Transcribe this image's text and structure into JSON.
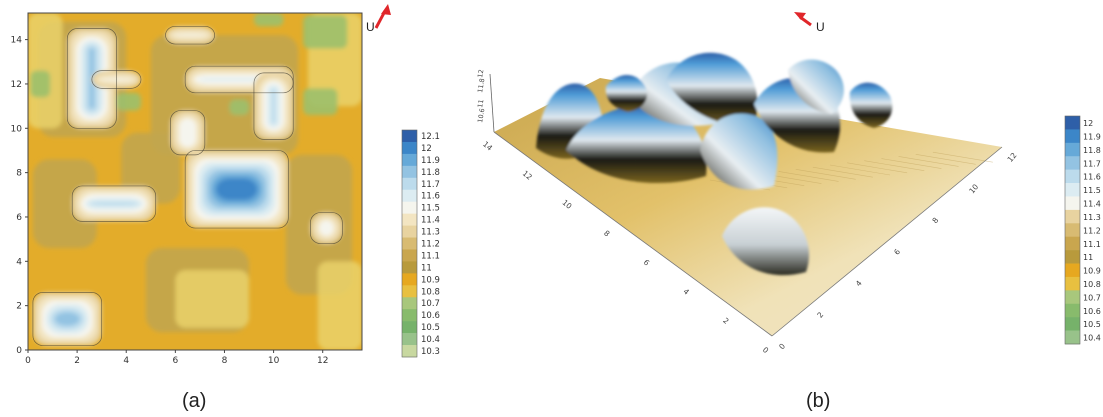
{
  "panels": {
    "a": {
      "caption": "(a)",
      "direction_label": "U"
    },
    "b": {
      "caption": "(b)",
      "direction_label": "U"
    }
  },
  "chart_data": [
    {
      "type": "heatmap",
      "panel": "a",
      "title": "",
      "xlabel": "",
      "ylabel": "",
      "xlim": [
        0,
        13.6
      ],
      "ylim": [
        0,
        15.2
      ],
      "x_ticks": [
        0,
        2,
        4,
        6,
        8,
        10,
        12
      ],
      "y_ticks": [
        0,
        2,
        4,
        6,
        8,
        10,
        12,
        14
      ],
      "colorbar": {
        "labels": [
          "12.1",
          "12",
          "11.9",
          "11.8",
          "11.7",
          "11.6",
          "11.5",
          "11.4",
          "11.3",
          "11.2",
          "11.1",
          "11",
          "10.9",
          "10.8",
          "10.7",
          "10.6",
          "10.5",
          "10.4",
          "10.3"
        ],
        "colors": [
          "#2e5fa8",
          "#3c86c8",
          "#66a9d8",
          "#93c3e2",
          "#bcdbec",
          "#dcecf2",
          "#f5f5ee",
          "#f3e5c2",
          "#e8d3a0",
          "#d8bb72",
          "#c9a64e",
          "#b89a3c",
          "#e6a820",
          "#e8c040",
          "#a8c77c",
          "#88bb6c",
          "#76b26a",
          "#98c28a",
          "#c8d8a0"
        ]
      },
      "features": [
        {
          "name": "high-rectangle-top-left",
          "x_range": [
            1.6,
            3.6
          ],
          "y_range": [
            10.0,
            14.5
          ],
          "peak": 12.1
        },
        {
          "name": "high-bar-top",
          "x_range": [
            2.6,
            4.6
          ],
          "y_range": [
            11.8,
            12.6
          ],
          "peak": 11.9
        },
        {
          "name": "high-bar-mid-left",
          "x_range": [
            1.8,
            5.2
          ],
          "y_range": [
            5.8,
            7.4
          ],
          "peak": 12.0
        },
        {
          "name": "high-rect-right",
          "x_range": [
            6.4,
            10.6
          ],
          "y_range": [
            5.5,
            9.0
          ],
          "peak": 12.0
        },
        {
          "name": "high-blob-bottom-left",
          "x_range": [
            0.2,
            3.0
          ],
          "y_range": [
            0.2,
            2.6
          ],
          "peak": 11.8
        },
        {
          "name": "high-bar-top-right",
          "x_range": [
            6.4,
            10.8
          ],
          "y_range": [
            11.6,
            12.8
          ],
          "peak": 11.7
        },
        {
          "name": "high-bar-right-vertical",
          "x_range": [
            9.2,
            10.8
          ],
          "y_range": [
            9.5,
            12.5
          ],
          "peak": 11.7
        },
        {
          "name": "high-blob-center",
          "x_range": [
            5.8,
            7.2
          ],
          "y_range": [
            8.8,
            10.8
          ],
          "peak": 11.5
        },
        {
          "name": "high-blob-right",
          "x_range": [
            11.5,
            12.8
          ],
          "y_range": [
            4.8,
            6.2
          ],
          "peak": 11.5
        },
        {
          "name": "high-bar-top-middle",
          "x_range": [
            5.6,
            7.6
          ],
          "y_range": [
            13.8,
            14.6
          ],
          "peak": 11.6
        }
      ]
    },
    {
      "type": "heatmap",
      "panel": "b",
      "subtype": "3d-surface",
      "title": "",
      "xlabel": "",
      "ylabel": "",
      "zlabel": "",
      "x_ticks": [
        "0",
        "2",
        "4",
        "6",
        "8",
        "10",
        "12"
      ],
      "y_ticks": [
        "0",
        "2",
        "4",
        "6",
        "8",
        "10",
        "12",
        "14"
      ],
      "z_ticks": [
        "12",
        "11.8",
        "11",
        "10.6"
      ],
      "colorbar": {
        "labels": [
          "12",
          "11.9",
          "11.8",
          "11.7",
          "11.6",
          "11.5",
          "11.4",
          "11.3",
          "11.2",
          "11.1",
          "11",
          "10.9",
          "10.8",
          "10.7",
          "10.6",
          "10.5",
          "10.4"
        ],
        "colors": [
          "#2e5fa8",
          "#3c86c8",
          "#66a9d8",
          "#93c3e2",
          "#bcdbec",
          "#dcecf2",
          "#f5f5ee",
          "#e8d3a0",
          "#d8bb72",
          "#c9a64e",
          "#b89a3c",
          "#e6a820",
          "#e8c040",
          "#a8c77c",
          "#88bb6c",
          "#76b26a",
          "#98c28a"
        ]
      }
    }
  ]
}
